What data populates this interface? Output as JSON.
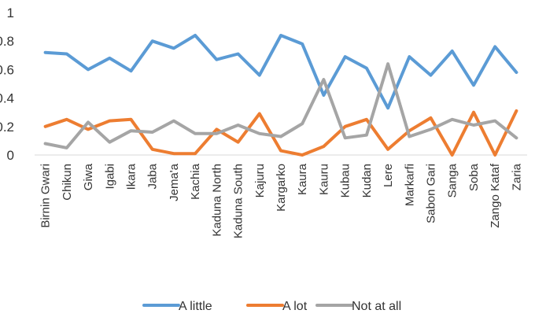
{
  "chart_data": {
    "type": "line",
    "categories": [
      "Birnin Gwari",
      "Chikun",
      "Giwa",
      "Igabi",
      "Ikara",
      "Jaba",
      "Jema'a",
      "Kachia",
      "Kaduna North",
      "Kaduna South",
      "Kajuru",
      "Kargarko",
      "Kaura",
      "Kauru",
      "Kubau",
      "Kudan",
      "Lere",
      "Markarfi",
      "Sabon Gari",
      "Sanga",
      "Soba",
      "Zango Kataf",
      "Zaria"
    ],
    "series": [
      {
        "name": "A little",
        "color": "#5B9BD5",
        "values": [
          0.72,
          0.71,
          0.6,
          0.68,
          0.59,
          0.8,
          0.75,
          0.84,
          0.67,
          0.71,
          0.56,
          0.84,
          0.78,
          0.42,
          0.69,
          0.61,
          0.33,
          0.69,
          0.56,
          0.73,
          0.49,
          0.76,
          0.58
        ]
      },
      {
        "name": "A lot",
        "color": "#ED7D31",
        "values": [
          0.2,
          0.25,
          0.18,
          0.24,
          0.25,
          0.04,
          0.01,
          0.01,
          0.18,
          0.09,
          0.29,
          0.03,
          0.0,
          0.06,
          0.2,
          0.25,
          0.04,
          0.17,
          0.26,
          0.0,
          0.3,
          0.0,
          0.31
        ]
      },
      {
        "name": "Not at all",
        "color": "#A5A5A5",
        "values": [
          0.08,
          0.05,
          0.23,
          0.09,
          0.17,
          0.16,
          0.24,
          0.15,
          0.15,
          0.21,
          0.15,
          0.13,
          0.22,
          0.53,
          0.12,
          0.14,
          0.64,
          0.13,
          0.18,
          0.25,
          0.21,
          0.24,
          0.12
        ]
      }
    ],
    "y_ticks": [
      "0",
      "0.2",
      "0.4",
      "0.6",
      "0.8",
      "1"
    ],
    "ylim": [
      0,
      1
    ],
    "grid": false,
    "legend_position": "bottom"
  }
}
